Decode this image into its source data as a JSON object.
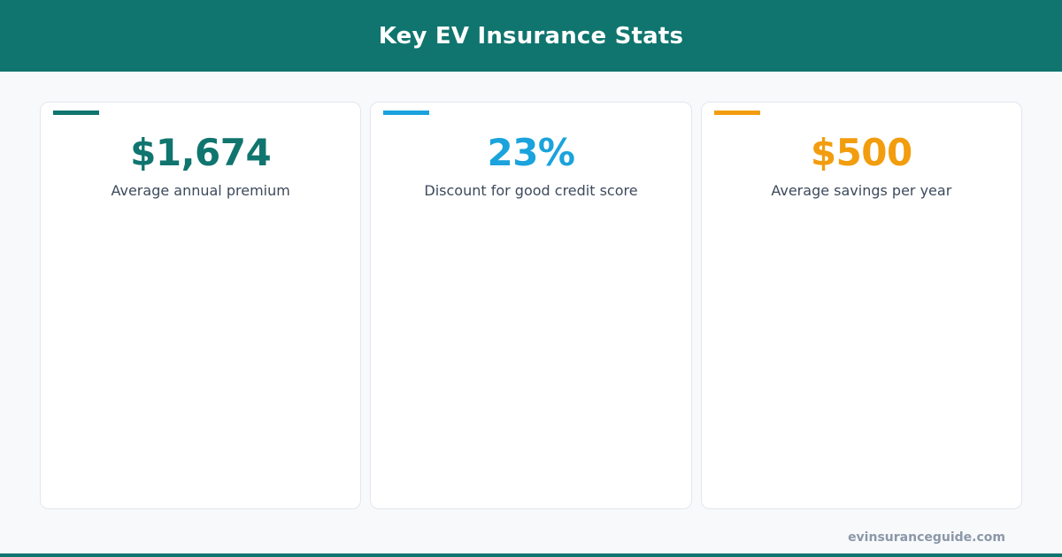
{
  "header": {
    "title": "Key EV Insurance Stats"
  },
  "colors": {
    "brand": "#10756e",
    "blue": "#1aa3dc",
    "orange": "#f29d0e"
  },
  "stats": [
    {
      "value": "$1,674",
      "label": "Average annual premium",
      "color": "#10756e"
    },
    {
      "value": "23%",
      "label": "Discount for good credit score",
      "color": "#1aa3dc"
    },
    {
      "value": "$500",
      "label": "Average savings per year",
      "color": "#f29d0e"
    }
  ],
  "footer": {
    "site": "evinsuranceguide.com"
  }
}
